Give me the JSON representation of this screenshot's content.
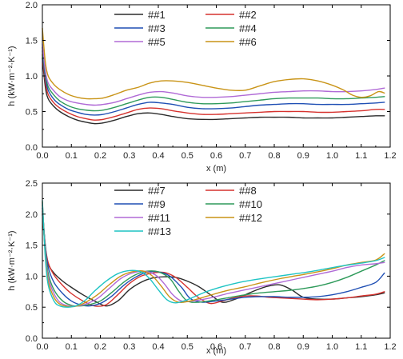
{
  "chart_data": [
    {
      "type": "line",
      "title": "",
      "xlabel": "x (m)",
      "ylabel": "h (kW·m⁻²·K⁻¹)",
      "xlim": [
        0.0,
        1.2
      ],
      "ylim": [
        0.0,
        2.0
      ],
      "xticks": [
        "0.0",
        "0.1",
        "0.2",
        "0.3",
        "0.4",
        "0.5",
        "0.6",
        "0.7",
        "0.8",
        "0.9",
        "1.0",
        "1.1",
        "1.2"
      ],
      "yticks": [
        "0.0",
        "0.5",
        "1.0",
        "1.5",
        "2.0"
      ],
      "grid": false,
      "legend_position": "top-center",
      "series": [
        {
          "name": "##1",
          "color": "#2b2b2b",
          "x": [
            0.0,
            0.01,
            0.02,
            0.04,
            0.06,
            0.09,
            0.12,
            0.15,
            0.18,
            0.21,
            0.25,
            0.29,
            0.33,
            0.37,
            0.41,
            0.45,
            0.5,
            0.55,
            0.6,
            0.65,
            0.7,
            0.75,
            0.8,
            0.85,
            0.9,
            0.95,
            1.0,
            1.05,
            1.1,
            1.15,
            1.18
          ],
          "y": [
            1.25,
            0.85,
            0.68,
            0.57,
            0.5,
            0.43,
            0.38,
            0.35,
            0.33,
            0.34,
            0.38,
            0.43,
            0.47,
            0.48,
            0.46,
            0.43,
            0.4,
            0.39,
            0.39,
            0.4,
            0.41,
            0.42,
            0.42,
            0.42,
            0.41,
            0.41,
            0.41,
            0.42,
            0.43,
            0.44,
            0.44
          ]
        },
        {
          "name": "##2",
          "color": "#d6322e",
          "x": [
            0.0,
            0.01,
            0.02,
            0.04,
            0.06,
            0.09,
            0.12,
            0.15,
            0.18,
            0.21,
            0.25,
            0.29,
            0.33,
            0.37,
            0.41,
            0.45,
            0.5,
            0.55,
            0.6,
            0.65,
            0.7,
            0.75,
            0.8,
            0.85,
            0.9,
            0.95,
            1.0,
            1.05,
            1.1,
            1.15,
            1.18
          ],
          "y": [
            1.3,
            0.92,
            0.74,
            0.62,
            0.55,
            0.48,
            0.43,
            0.4,
            0.38,
            0.39,
            0.43,
            0.48,
            0.53,
            0.55,
            0.54,
            0.51,
            0.48,
            0.46,
            0.46,
            0.47,
            0.48,
            0.49,
            0.5,
            0.5,
            0.5,
            0.49,
            0.49,
            0.5,
            0.51,
            0.53,
            0.53
          ]
        },
        {
          "name": "##3",
          "color": "#1f4fb4",
          "x": [
            0.0,
            0.01,
            0.02,
            0.04,
            0.06,
            0.09,
            0.12,
            0.15,
            0.18,
            0.21,
            0.25,
            0.29,
            0.33,
            0.37,
            0.41,
            0.45,
            0.5,
            0.55,
            0.6,
            0.65,
            0.7,
            0.75,
            0.8,
            0.85,
            0.9,
            0.95,
            1.0,
            1.05,
            1.1,
            1.15,
            1.18
          ],
          "y": [
            1.35,
            0.98,
            0.8,
            0.67,
            0.6,
            0.53,
            0.49,
            0.46,
            0.45,
            0.46,
            0.5,
            0.55,
            0.6,
            0.63,
            0.62,
            0.6,
            0.56,
            0.54,
            0.54,
            0.55,
            0.57,
            0.59,
            0.6,
            0.61,
            0.61,
            0.6,
            0.6,
            0.6,
            0.61,
            0.62,
            0.63
          ]
        },
        {
          "name": "##4",
          "color": "#2e9a5a",
          "x": [
            0.0,
            0.01,
            0.02,
            0.04,
            0.06,
            0.09,
            0.12,
            0.15,
            0.18,
            0.21,
            0.25,
            0.29,
            0.33,
            0.37,
            0.41,
            0.45,
            0.5,
            0.55,
            0.6,
            0.65,
            0.7,
            0.75,
            0.8,
            0.85,
            0.9,
            0.95,
            1.0,
            1.05,
            1.1,
            1.15,
            1.18
          ],
          "y": [
            1.4,
            1.03,
            0.85,
            0.73,
            0.65,
            0.58,
            0.54,
            0.52,
            0.51,
            0.52,
            0.56,
            0.61,
            0.66,
            0.7,
            0.7,
            0.67,
            0.63,
            0.61,
            0.61,
            0.62,
            0.64,
            0.66,
            0.68,
            0.69,
            0.69,
            0.69,
            0.68,
            0.68,
            0.69,
            0.7,
            0.71
          ]
        },
        {
          "name": "##5",
          "color": "#b06ad6",
          "x": [
            0.0,
            0.01,
            0.02,
            0.04,
            0.06,
            0.09,
            0.12,
            0.15,
            0.18,
            0.21,
            0.25,
            0.29,
            0.33,
            0.37,
            0.41,
            0.45,
            0.5,
            0.55,
            0.6,
            0.65,
            0.7,
            0.75,
            0.8,
            0.85,
            0.9,
            0.95,
            1.0,
            1.05,
            1.1,
            1.15,
            1.18
          ],
          "y": [
            1.45,
            1.08,
            0.9,
            0.79,
            0.71,
            0.65,
            0.62,
            0.6,
            0.59,
            0.6,
            0.63,
            0.68,
            0.73,
            0.77,
            0.78,
            0.76,
            0.72,
            0.7,
            0.7,
            0.71,
            0.73,
            0.75,
            0.77,
            0.78,
            0.79,
            0.79,
            0.78,
            0.78,
            0.79,
            0.81,
            0.83
          ]
        },
        {
          "name": "##6",
          "color": "#c99417",
          "x": [
            0.0,
            0.01,
            0.02,
            0.04,
            0.06,
            0.09,
            0.12,
            0.15,
            0.18,
            0.21,
            0.25,
            0.29,
            0.33,
            0.37,
            0.41,
            0.45,
            0.5,
            0.55,
            0.6,
            0.65,
            0.7,
            0.75,
            0.8,
            0.85,
            0.9,
            0.95,
            1.0,
            1.04,
            1.07,
            1.1,
            1.13,
            1.16,
            1.18
          ],
          "y": [
            1.67,
            1.2,
            1.0,
            0.88,
            0.81,
            0.74,
            0.7,
            0.68,
            0.68,
            0.69,
            0.74,
            0.8,
            0.84,
            0.9,
            0.93,
            0.93,
            0.91,
            0.87,
            0.83,
            0.8,
            0.8,
            0.86,
            0.92,
            0.95,
            0.96,
            0.93,
            0.87,
            0.8,
            0.73,
            0.7,
            0.72,
            0.78,
            0.76
          ]
        }
      ]
    },
    {
      "type": "line",
      "title": "",
      "xlabel": "x (m)",
      "ylabel": "h (kW·m⁻²·K⁻¹)",
      "xlim": [
        0.0,
        1.2
      ],
      "ylim": [
        0.0,
        2.5
      ],
      "xticks": [
        "0.0",
        "0.1",
        "0.2",
        "0.3",
        "0.4",
        "0.5",
        "0.6",
        "0.7",
        "0.8",
        "0.9",
        "1.0",
        "1.1",
        "1.2"
      ],
      "yticks": [
        "0.0",
        "0.5",
        "1.0",
        "1.5",
        "2.0",
        "2.5"
      ],
      "grid": false,
      "legend_position": "top-center",
      "series": [
        {
          "name": "##7",
          "color": "#2b2b2b",
          "x": [
            0.0,
            0.01,
            0.02,
            0.04,
            0.07,
            0.1,
            0.14,
            0.18,
            0.22,
            0.26,
            0.3,
            0.34,
            0.38,
            0.42,
            0.46,
            0.5,
            0.54,
            0.58,
            0.62,
            0.66,
            0.7,
            0.74,
            0.78,
            0.82,
            0.86,
            0.9,
            0.95,
            1.0,
            1.05,
            1.1,
            1.15,
            1.18
          ],
          "y": [
            2.0,
            1.45,
            1.2,
            1.05,
            0.92,
            0.82,
            0.7,
            0.6,
            0.52,
            0.6,
            0.78,
            0.9,
            0.97,
            0.99,
            0.98,
            0.92,
            0.83,
            0.7,
            0.58,
            0.62,
            0.7,
            0.78,
            0.84,
            0.86,
            0.78,
            0.66,
            0.63,
            0.63,
            0.65,
            0.67,
            0.7,
            0.73
          ]
        },
        {
          "name": "##8",
          "color": "#d6322e",
          "x": [
            0.0,
            0.01,
            0.02,
            0.04,
            0.07,
            0.1,
            0.14,
            0.18,
            0.22,
            0.26,
            0.3,
            0.34,
            0.38,
            0.42,
            0.46,
            0.5,
            0.54,
            0.58,
            0.62,
            0.66,
            0.7,
            0.74,
            0.78,
            0.82,
            0.86,
            0.9,
            0.95,
            1.0,
            1.05,
            1.1,
            1.15,
            1.18
          ],
          "y": [
            2.05,
            1.5,
            1.22,
            1.02,
            0.85,
            0.72,
            0.6,
            0.52,
            0.54,
            0.7,
            0.88,
            1.0,
            1.05,
            1.06,
            0.98,
            0.82,
            0.65,
            0.56,
            0.6,
            0.65,
            0.68,
            0.68,
            0.66,
            0.65,
            0.64,
            0.63,
            0.62,
            0.63,
            0.65,
            0.68,
            0.71,
            0.75
          ]
        },
        {
          "name": "##9",
          "color": "#1f4fb4",
          "x": [
            0.0,
            0.01,
            0.02,
            0.04,
            0.07,
            0.1,
            0.13,
            0.16,
            0.2,
            0.24,
            0.28,
            0.32,
            0.36,
            0.4,
            0.44,
            0.48,
            0.51,
            0.55,
            0.6,
            0.65,
            0.7,
            0.75,
            0.8,
            0.85,
            0.9,
            0.95,
            1.0,
            1.05,
            1.1,
            1.15,
            1.18
          ],
          "y": [
            2.1,
            1.5,
            1.15,
            0.9,
            0.72,
            0.6,
            0.54,
            0.52,
            0.56,
            0.68,
            0.85,
            0.98,
            1.06,
            1.07,
            1.0,
            0.82,
            0.64,
            0.58,
            0.6,
            0.63,
            0.66,
            0.67,
            0.67,
            0.66,
            0.66,
            0.67,
            0.7,
            0.75,
            0.82,
            0.9,
            1.05
          ]
        },
        {
          "name": "##10",
          "color": "#2e9a5a",
          "x": [
            0.0,
            0.01,
            0.02,
            0.04,
            0.07,
            0.1,
            0.13,
            0.16,
            0.2,
            0.24,
            0.28,
            0.32,
            0.36,
            0.4,
            0.44,
            0.47,
            0.5,
            0.54,
            0.6,
            0.65,
            0.7,
            0.75,
            0.8,
            0.85,
            0.9,
            0.95,
            1.0,
            1.05,
            1.1,
            1.15,
            1.18
          ],
          "y": [
            2.15,
            1.45,
            1.05,
            0.78,
            0.6,
            0.53,
            0.52,
            0.54,
            0.6,
            0.74,
            0.9,
            1.02,
            1.08,
            1.07,
            0.96,
            0.76,
            0.6,
            0.58,
            0.62,
            0.66,
            0.7,
            0.73,
            0.75,
            0.77,
            0.8,
            0.84,
            0.9,
            0.98,
            1.08,
            1.18,
            1.25
          ]
        },
        {
          "name": "##11",
          "color": "#b06ad6",
          "x": [
            0.0,
            0.01,
            0.02,
            0.04,
            0.06,
            0.09,
            0.12,
            0.15,
            0.19,
            0.23,
            0.27,
            0.31,
            0.35,
            0.39,
            0.42,
            0.45,
            0.48,
            0.52,
            0.58,
            0.64,
            0.7,
            0.76,
            0.82,
            0.88,
            0.94,
            1.0,
            1.05,
            1.1,
            1.15,
            1.18
          ],
          "y": [
            2.18,
            1.4,
            0.98,
            0.72,
            0.58,
            0.52,
            0.52,
            0.55,
            0.64,
            0.8,
            0.96,
            1.05,
            1.08,
            1.02,
            0.88,
            0.7,
            0.6,
            0.6,
            0.65,
            0.72,
            0.78,
            0.84,
            0.9,
            0.96,
            1.02,
            1.08,
            1.14,
            1.18,
            1.2,
            1.22
          ]
        },
        {
          "name": "##12",
          "color": "#c99417",
          "x": [
            0.0,
            0.01,
            0.02,
            0.04,
            0.06,
            0.09,
            0.12,
            0.15,
            0.19,
            0.23,
            0.27,
            0.31,
            0.35,
            0.38,
            0.41,
            0.44,
            0.47,
            0.51,
            0.57,
            0.63,
            0.7,
            0.76,
            0.82,
            0.88,
            0.94,
            1.0,
            1.05,
            1.1,
            1.15,
            1.18
          ],
          "y": [
            2.2,
            1.35,
            0.92,
            0.66,
            0.55,
            0.51,
            0.52,
            0.58,
            0.7,
            0.86,
            1.0,
            1.07,
            1.08,
            1.0,
            0.84,
            0.66,
            0.58,
            0.6,
            0.68,
            0.76,
            0.83,
            0.9,
            0.96,
            1.01,
            1.06,
            1.12,
            1.18,
            1.22,
            1.26,
            1.36
          ]
        },
        {
          "name": "##13",
          "color": "#1ec4c4",
          "x": [
            0.0,
            0.01,
            0.02,
            0.04,
            0.06,
            0.09,
            0.12,
            0.15,
            0.18,
            0.22,
            0.26,
            0.3,
            0.34,
            0.37,
            0.4,
            0.43,
            0.46,
            0.5,
            0.56,
            0.62,
            0.68,
            0.74,
            0.8,
            0.86,
            0.92,
            0.98,
            1.04,
            1.1,
            1.15,
            1.18
          ],
          "y": [
            2.22,
            1.3,
            0.86,
            0.6,
            0.52,
            0.5,
            0.53,
            0.62,
            0.76,
            0.92,
            1.04,
            1.09,
            1.07,
            0.96,
            0.78,
            0.62,
            0.57,
            0.62,
            0.74,
            0.83,
            0.9,
            0.95,
            0.99,
            1.03,
            1.07,
            1.12,
            1.17,
            1.21,
            1.25,
            1.3
          ]
        }
      ]
    }
  ]
}
